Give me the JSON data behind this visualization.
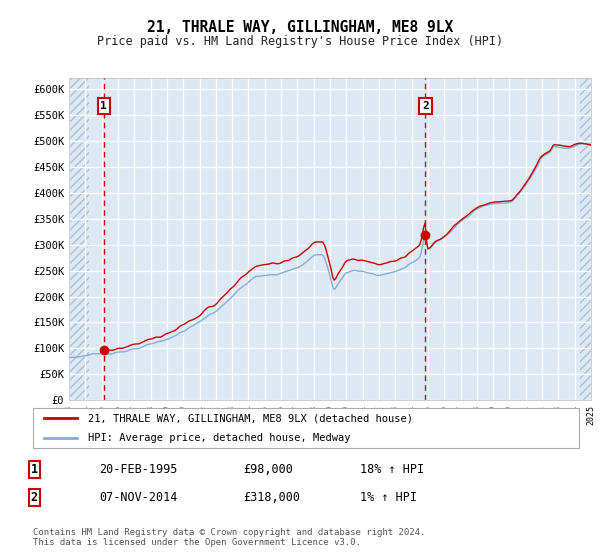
{
  "title": "21, THRALE WAY, GILLINGHAM, ME8 9LX",
  "subtitle": "Price paid vs. HM Land Registry's House Price Index (HPI)",
  "ylim": [
    0,
    620000
  ],
  "yticks": [
    0,
    50000,
    100000,
    150000,
    200000,
    250000,
    300000,
    350000,
    400000,
    450000,
    500000,
    550000,
    600000
  ],
  "background_color": "#dce9f5",
  "line_color_red": "#cc0000",
  "line_color_blue": "#85aed4",
  "vline_color": "#cc0000",
  "transaction1_x": 1995.13,
  "transaction1_price": 98000,
  "transaction2_x": 2014.85,
  "transaction2_price": 318000,
  "legend_label_red": "21, THRALE WAY, GILLINGHAM, ME8 9LX (detached house)",
  "legend_label_blue": "HPI: Average price, detached house, Medway",
  "annotation1_label": "1",
  "annotation2_label": "2",
  "table_row1": [
    "1",
    "20-FEB-1995",
    "£98,000",
    "18% ↑ HPI"
  ],
  "table_row2": [
    "2",
    "07-NOV-2014",
    "£318,000",
    "1% ↑ HPI"
  ],
  "footer": "Contains HM Land Registry data © Crown copyright and database right 2024.\nThis data is licensed under the Open Government Licence v3.0.",
  "xmin": 1993,
  "xmax": 2025
}
